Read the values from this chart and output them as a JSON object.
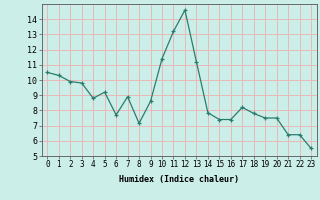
{
  "x": [
    0,
    1,
    2,
    3,
    4,
    5,
    6,
    7,
    8,
    9,
    10,
    11,
    12,
    13,
    14,
    15,
    16,
    17,
    18,
    19,
    20,
    21,
    22,
    23
  ],
  "y": [
    10.5,
    10.3,
    9.9,
    9.8,
    8.8,
    9.2,
    7.7,
    8.9,
    7.15,
    8.6,
    11.4,
    13.2,
    14.6,
    11.2,
    7.85,
    7.4,
    7.4,
    8.2,
    7.8,
    7.5,
    7.5,
    6.4,
    6.4,
    5.5
  ],
  "xlabel": "Humidex (Indice chaleur)",
  "ylim": [
    5,
    15
  ],
  "xlim": [
    -0.5,
    23.5
  ],
  "yticks": [
    5,
    6,
    7,
    8,
    9,
    10,
    11,
    12,
    13,
    14
  ],
  "xticks": [
    0,
    1,
    2,
    3,
    4,
    5,
    6,
    7,
    8,
    9,
    10,
    11,
    12,
    13,
    14,
    15,
    16,
    17,
    18,
    19,
    20,
    21,
    22,
    23
  ],
  "xtick_labels": [
    "0",
    "1",
    "2",
    "3",
    "4",
    "5",
    "6",
    "7",
    "8",
    "9",
    "10",
    "11",
    "12",
    "13",
    "14",
    "15",
    "16",
    "17",
    "18",
    "19",
    "20",
    "21",
    "22",
    "23"
  ],
  "line_color": "#2a7d6e",
  "bg_color": "#cceee8",
  "grid_color": "#e8b8b8",
  "xlabel_fontsize": 6.0,
  "tick_fontsize": 5.5
}
